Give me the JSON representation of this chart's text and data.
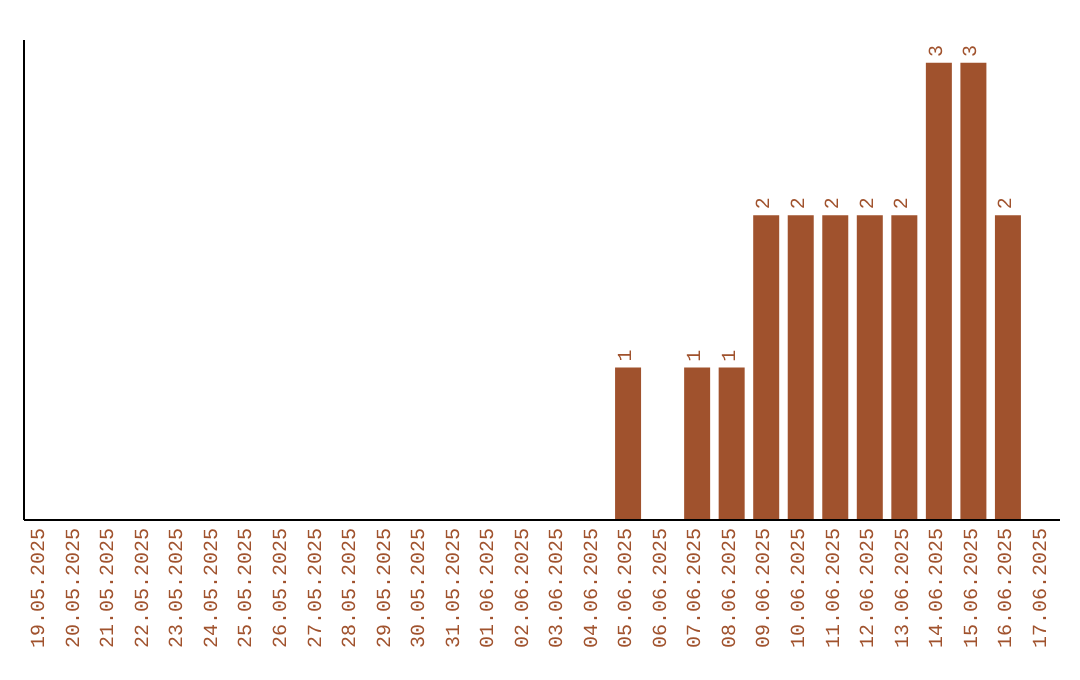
{
  "chart_data": {
    "type": "bar",
    "categories": [
      "19.05.2025",
      "20.05.2025",
      "21.05.2025",
      "22.05.2025",
      "23.05.2025",
      "24.05.2025",
      "25.05.2025",
      "26.05.2025",
      "27.05.2025",
      "28.05.2025",
      "29.05.2025",
      "30.05.2025",
      "31.05.2025",
      "01.06.2025",
      "02.06.2025",
      "03.06.2025",
      "04.06.2025",
      "05.06.2025",
      "06.06.2025",
      "07.06.2025",
      "08.06.2025",
      "09.06.2025",
      "10.06.2025",
      "11.06.2025",
      "12.06.2025",
      "13.06.2025",
      "14.06.2025",
      "15.06.2025",
      "16.06.2025",
      "17.06.2025"
    ],
    "values": [
      null,
      null,
      null,
      null,
      null,
      null,
      null,
      null,
      null,
      null,
      null,
      null,
      null,
      null,
      null,
      null,
      null,
      1,
      null,
      1,
      1,
      2,
      2,
      2,
      2,
      2,
      3,
      3,
      2,
      null
    ],
    "data_labels": true,
    "color": "#a0522d",
    "tick_labels": "x"
  }
}
